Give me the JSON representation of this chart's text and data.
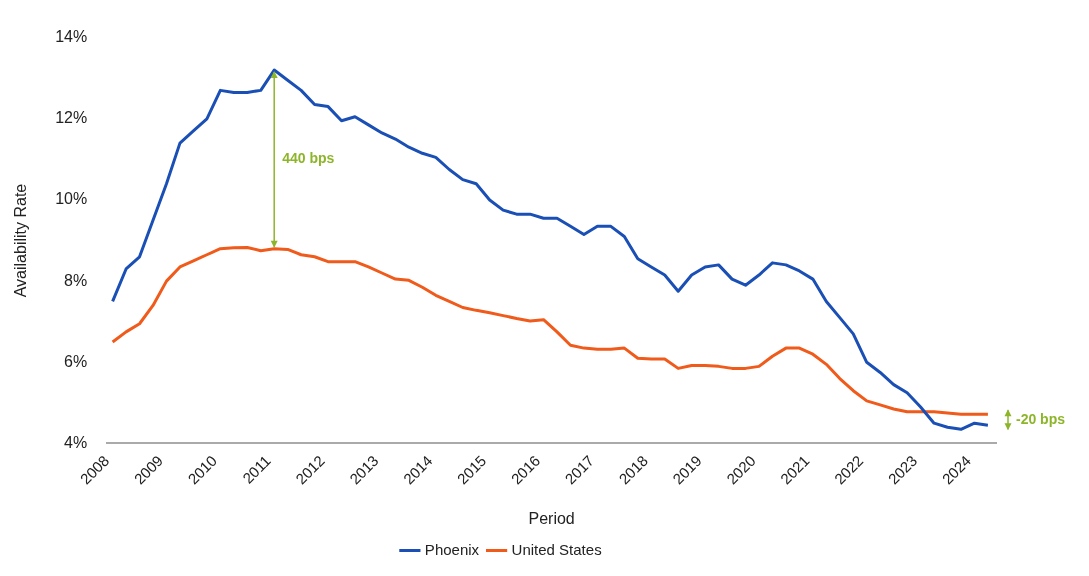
{
  "chart_data": {
    "type": "line",
    "xlabel": "Period",
    "ylabel": "Availability Rate",
    "x": [
      2008.1,
      2008.35,
      2008.6,
      2008.85,
      2009.1,
      2009.35,
      2009.6,
      2009.85,
      2010.1,
      2010.35,
      2010.6,
      2010.85,
      2011.1,
      2011.35,
      2011.6,
      2011.85,
      2012.1,
      2012.35,
      2012.6,
      2012.85,
      2013.1,
      2013.35,
      2013.6,
      2013.85,
      2014.1,
      2014.35,
      2014.6,
      2014.85,
      2015.1,
      2015.35,
      2015.6,
      2015.85,
      2016.1,
      2016.35,
      2016.6,
      2016.85,
      2017.1,
      2017.35,
      2017.6,
      2017.85,
      2018.1,
      2018.35,
      2018.6,
      2018.85,
      2019.1,
      2019.35,
      2019.6,
      2019.85,
      2020.1,
      2020.35,
      2020.6,
      2020.85,
      2021.1,
      2021.35,
      2021.6,
      2021.85,
      2022.1,
      2022.35,
      2022.6,
      2022.85,
      2023.1,
      2023.35,
      2023.6,
      2023.85,
      2024.1,
      2024.35
    ],
    "series": [
      {
        "name": "Phoenix",
        "color": "#1a4fb5",
        "values": [
          7.5,
          8.3,
          8.6,
          9.5,
          10.4,
          11.4,
          11.7,
          12.0,
          12.7,
          12.65,
          12.65,
          12.7,
          13.2,
          12.95,
          12.7,
          12.35,
          12.3,
          11.95,
          12.05,
          11.85,
          11.65,
          11.5,
          11.3,
          11.15,
          11.05,
          10.75,
          10.5,
          10.4,
          10.0,
          9.75,
          9.65,
          9.65,
          9.55,
          9.55,
          9.35,
          9.15,
          9.35,
          9.35,
          9.1,
          8.55,
          8.35,
          8.15,
          7.75,
          8.15,
          8.35,
          8.4,
          8.05,
          7.9,
          8.15,
          8.45,
          8.4,
          8.25,
          8.05,
          7.5,
          7.1,
          6.7,
          6.0,
          5.75,
          5.45,
          5.25,
          4.9,
          4.5,
          4.4,
          4.35,
          4.5,
          4.45
        ]
      },
      {
        "name": "United States",
        "color": "#f05a1a",
        "values": [
          6.5,
          6.75,
          6.95,
          7.4,
          8.0,
          8.35,
          8.5,
          8.65,
          8.8,
          8.82,
          8.83,
          8.75,
          8.8,
          8.78,
          8.65,
          8.6,
          8.48,
          8.48,
          8.48,
          8.35,
          8.2,
          8.05,
          8.02,
          7.85,
          7.65,
          7.5,
          7.35,
          7.28,
          7.22,
          7.15,
          7.08,
          7.02,
          7.05,
          6.75,
          6.42,
          6.35,
          6.32,
          6.32,
          6.35,
          6.1,
          6.08,
          6.08,
          5.85,
          5.92,
          5.92,
          5.9,
          5.85,
          5.85,
          5.9,
          6.15,
          6.35,
          6.35,
          6.2,
          5.95,
          5.6,
          5.3,
          5.05,
          4.95,
          4.85,
          4.78,
          4.78,
          4.78,
          4.75,
          4.72,
          4.72,
          4.72
        ]
      }
    ],
    "xlim": [
      2008,
      2024.5
    ],
    "xticks": [
      2008,
      2009,
      2010,
      2011,
      2012,
      2013,
      2014,
      2015,
      2016,
      2017,
      2018,
      2019,
      2020,
      2021,
      2022,
      2023,
      2024
    ],
    "ylim": [
      4,
      14
    ],
    "yticks": [
      {
        "value": 4,
        "label": "4%"
      },
      {
        "value": 6,
        "label": "6%"
      },
      {
        "value": 8,
        "label": "8%"
      },
      {
        "value": 10,
        "label": "10%"
      },
      {
        "value": 12,
        "label": "12%"
      },
      {
        "value": 14,
        "label": "14%"
      }
    ],
    "annotations": [
      "440 bps",
      "-20 bps"
    ],
    "grid": false,
    "legend": "bottom",
    "marker": "none",
    "line_style": "solid"
  }
}
